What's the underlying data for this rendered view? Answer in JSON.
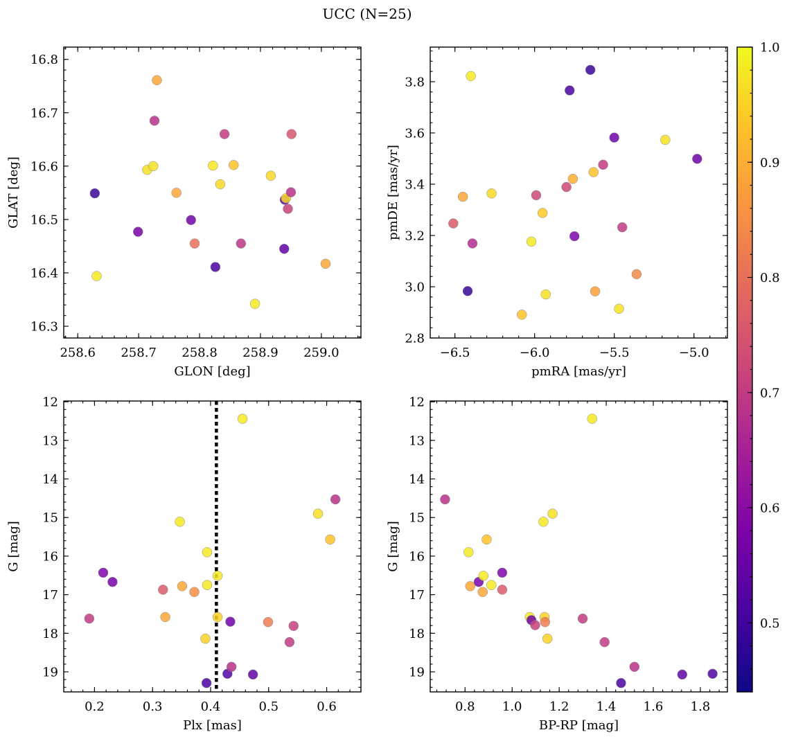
{
  "title": "UCC (N=25)",
  "chart_data": [
    {
      "type": "scatter",
      "xlabel": "GLON [deg]",
      "ylabel": "GLAT [deg]",
      "xlim": [
        258.577,
        259.065
      ],
      "ylim": [
        16.278,
        16.823
      ],
      "xticks": [
        258.6,
        258.7,
        258.8,
        258.9,
        259.0
      ],
      "yticks": [
        16.3,
        16.4,
        16.5,
        16.6,
        16.7,
        16.8
      ],
      "xtick_labels": [
        "258.6",
        "258.7",
        "258.8",
        "258.9",
        "259.0"
      ],
      "ytick_labels": [
        "16.3",
        "16.4",
        "16.5",
        "16.6",
        "16.7",
        "16.8"
      ],
      "x": [
        258.628,
        258.631,
        258.699,
        258.714,
        258.724,
        258.726,
        258.73,
        258.762,
        258.786,
        258.792,
        258.822,
        258.826,
        258.834,
        258.841,
        258.856,
        258.868,
        258.891,
        258.917,
        258.939,
        258.94,
        258.942,
        258.945,
        258.95,
        258.951,
        259.007
      ],
      "y": [
        16.549,
        16.394,
        16.477,
        16.593,
        16.6,
        16.685,
        16.761,
        16.55,
        16.499,
        16.455,
        16.601,
        16.411,
        16.566,
        16.66,
        16.602,
        16.455,
        16.342,
        16.582,
        16.445,
        16.537,
        16.54,
        16.52,
        16.551,
        16.66,
        16.417
      ],
      "c": [
        0.49,
        0.98,
        0.57,
        0.97,
        0.97,
        0.68,
        0.89,
        0.89,
        0.56,
        0.8,
        0.98,
        0.51,
        0.96,
        0.7,
        0.93,
        0.69,
        0.98,
        0.96,
        0.54,
        0.53,
        0.96,
        0.71,
        0.68,
        0.75,
        0.89
      ]
    },
    {
      "type": "scatter",
      "xlabel": "pmRA [mas/yr]",
      "ylabel": "pmDE [mas/yr]",
      "xlim": [
        -6.655,
        -4.79
      ],
      "ylim": [
        2.8,
        3.935
      ],
      "xticks": [
        -6.5,
        -6.0,
        -5.5,
        -5.0
      ],
      "yticks": [
        2.8,
        3.0,
        3.2,
        3.4,
        3.6,
        3.8
      ],
      "xtick_labels": [
        "−6.5",
        "−6.0",
        "−5.5",
        "−5.0"
      ],
      "ytick_labels": [
        "2.8",
        "3.0",
        "3.2",
        "3.4",
        "3.6",
        "3.8"
      ],
      "x": [
        -6.51,
        -6.45,
        -6.42,
        -6.4,
        -6.39,
        -6.27,
        -6.08,
        -6.02,
        -5.99,
        -5.95,
        -5.93,
        -5.8,
        -5.78,
        -5.76,
        -5.75,
        -5.65,
        -5.63,
        -5.62,
        -5.57,
        -5.5,
        -5.47,
        -5.45,
        -5.36,
        -5.18,
        -4.98
      ],
      "y": [
        3.247,
        3.351,
        2.983,
        3.822,
        3.169,
        3.364,
        2.891,
        3.176,
        3.357,
        3.288,
        2.97,
        3.389,
        3.766,
        3.421,
        3.197,
        3.846,
        3.447,
        2.982,
        3.476,
        3.582,
        2.914,
        3.232,
        3.049,
        3.573,
        3.499
      ],
      "c": [
        0.76,
        0.89,
        0.49,
        0.98,
        0.67,
        0.96,
        0.93,
        0.98,
        0.72,
        0.94,
        0.97,
        0.72,
        0.51,
        0.9,
        0.58,
        0.49,
        0.93,
        0.88,
        0.7,
        0.56,
        0.97,
        0.7,
        0.84,
        0.97,
        0.56
      ]
    },
    {
      "type": "scatter",
      "xlabel": "Plx [mas]",
      "ylabel": "G [mag]",
      "xlim": [
        0.147,
        0.659
      ],
      "ylim": [
        19.52,
        11.98
      ],
      "y_inverted": true,
      "xticks": [
        0.2,
        0.3,
        0.4,
        0.5,
        0.6
      ],
      "yticks": [
        12,
        13,
        14,
        15,
        16,
        17,
        18,
        19
      ],
      "xtick_labels": [
        "0.2",
        "0.3",
        "0.4",
        "0.5",
        "0.6"
      ],
      "ytick_labels": [
        "12",
        "13",
        "14",
        "15",
        "16",
        "17",
        "18",
        "19"
      ],
      "vline": 0.41,
      "x": [
        0.191,
        0.215,
        0.231,
        0.318,
        0.322,
        0.347,
        0.351,
        0.372,
        0.391,
        0.393,
        0.394,
        0.394,
        0.412,
        0.412,
        0.429,
        0.434,
        0.436,
        0.455,
        0.473,
        0.499,
        0.536,
        0.543,
        0.585,
        0.606,
        0.615
      ],
      "y": [
        17.62,
        16.43,
        16.67,
        16.87,
        17.58,
        15.11,
        16.78,
        16.93,
        18.14,
        19.29,
        15.9,
        16.75,
        16.51,
        17.58,
        19.05,
        17.7,
        18.87,
        12.44,
        19.07,
        17.71,
        18.23,
        17.81,
        14.9,
        15.57,
        14.53
      ],
      "c": [
        0.7,
        0.58,
        0.57,
        0.76,
        0.89,
        0.98,
        0.89,
        0.85,
        0.95,
        0.51,
        0.98,
        0.98,
        0.98,
        0.95,
        0.52,
        0.56,
        0.68,
        0.98,
        0.54,
        0.82,
        0.7,
        0.71,
        0.97,
        0.93,
        0.68
      ]
    },
    {
      "type": "scatter",
      "xlabel": "BP-RP [mag]",
      "ylabel": "G [mag]",
      "xlim": [
        0.652,
        1.915
      ],
      "ylim": [
        19.52,
        11.98
      ],
      "y_inverted": true,
      "xticks": [
        0.8,
        1.0,
        1.2,
        1.4,
        1.6,
        1.8
      ],
      "yticks": [
        12,
        13,
        14,
        15,
        16,
        17,
        18,
        19
      ],
      "xtick_labels": [
        "0.8",
        "1.0",
        "1.2",
        "1.4",
        "1.6",
        "1.8"
      ],
      "ytick_labels": [
        "12",
        "13",
        "14",
        "15",
        "16",
        "17",
        "18",
        "19"
      ],
      "x": [
        0.715,
        0.815,
        0.822,
        0.858,
        0.875,
        0.878,
        0.892,
        0.912,
        0.958,
        0.958,
        1.075,
        1.082,
        1.098,
        1.138,
        1.14,
        1.133,
        1.15,
        1.172,
        1.3,
        1.34,
        1.393,
        1.463,
        1.52,
        1.723,
        1.852
      ],
      "y": [
        14.53,
        15.9,
        16.78,
        16.67,
        16.93,
        16.51,
        15.57,
        16.75,
        16.43,
        16.87,
        17.58,
        17.66,
        17.79,
        17.58,
        17.71,
        15.11,
        18.14,
        14.9,
        17.62,
        12.44,
        18.23,
        19.29,
        18.87,
        19.07,
        19.05
      ],
      "c": [
        0.68,
        0.98,
        0.89,
        0.57,
        0.89,
        0.98,
        0.93,
        0.98,
        0.58,
        0.76,
        0.98,
        0.56,
        0.71,
        0.95,
        0.82,
        0.98,
        0.95,
        0.97,
        0.7,
        0.98,
        0.7,
        0.51,
        0.68,
        0.54,
        0.52
      ]
    }
  ],
  "colorbar": {
    "colormap": "plasma",
    "range": [
      0.44,
      1.0
    ],
    "ticks": [
      0.5,
      0.6,
      0.7,
      0.8,
      0.9,
      1.0
    ],
    "tick_labels": [
      "0.5",
      "0.6",
      "0.7",
      "0.8",
      "0.9",
      "1.0"
    ]
  }
}
